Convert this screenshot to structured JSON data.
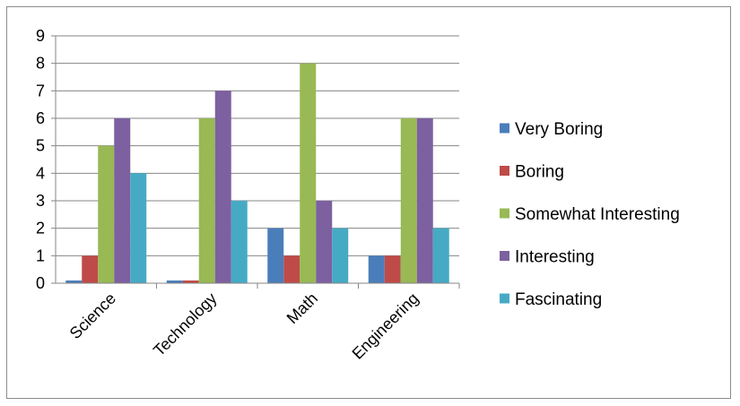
{
  "chart_data": {
    "type": "bar",
    "categories": [
      "Science",
      "Technology",
      "Math",
      "Engineering"
    ],
    "series": [
      {
        "name": "Very Boring",
        "color": "#4a7ebb",
        "values": [
          0.1,
          0.1,
          2,
          1
        ]
      },
      {
        "name": "Boring",
        "color": "#be4b48",
        "values": [
          1,
          0.1,
          1,
          1
        ]
      },
      {
        "name": "Somewhat Interesting",
        "color": "#98b954",
        "values": [
          5,
          6,
          8,
          6
        ]
      },
      {
        "name": "Interesting",
        "color": "#7d60a0",
        "values": [
          6,
          7,
          3,
          6
        ]
      },
      {
        "name": "Fascinating",
        "color": "#46aac5",
        "values": [
          4,
          3,
          2,
          2
        ]
      }
    ],
    "title": "",
    "xlabel": "",
    "ylabel": "",
    "ylim": [
      0,
      9
    ],
    "yticks": [
      "0",
      "1",
      "2",
      "3",
      "4",
      "5",
      "6",
      "7",
      "8",
      "9"
    ],
    "grid": true,
    "legend_position": "right"
  }
}
